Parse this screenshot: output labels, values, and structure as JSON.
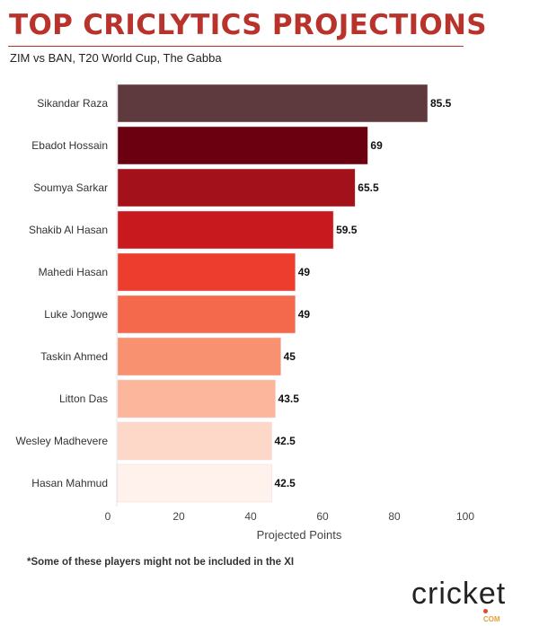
{
  "header": {
    "title": "TOP CRICLYTICS PROJECTIONS",
    "subtitle": "ZIM vs BAN, T20 World Cup, The Gabba"
  },
  "chart_data": {
    "type": "bar",
    "orientation": "horizontal",
    "categories": [
      "Sikandar Raza",
      "Ebadot Hossain",
      "Soumya Sarkar",
      "Shakib Al Hasan",
      "Mahedi Hasan",
      "Luke Jongwe",
      "Taskin Ahmed",
      "Litton Das",
      "Wesley Madhevere",
      "Hasan Mahmud"
    ],
    "values": [
      85.5,
      69,
      65.5,
      59.5,
      49,
      49,
      45,
      43.5,
      42.5,
      42.5
    ],
    "value_labels": [
      "85.5",
      "69",
      "65.5",
      "59.5",
      "49",
      "49",
      "45",
      "43.5",
      "42.5",
      "42.5"
    ],
    "colors": [
      "#5e3a3f",
      "#6a0010",
      "#a3121b",
      "#c8191f",
      "#ec3d2f",
      "#f4684c",
      "#f8916f",
      "#fbb69b",
      "#fdd8c9",
      "#fff2ec"
    ],
    "xlabel": "Projected Points",
    "ylabel": "",
    "xlim": [
      0,
      100
    ],
    "xticks": [
      0,
      20,
      40,
      60,
      80,
      100
    ],
    "xtick_labels": [
      "0",
      "20",
      "40",
      "60",
      "80",
      "100"
    ],
    "grid": false
  },
  "footnote": "*Some of these players might not be included in the XI",
  "logo": {
    "word": "cricket",
    "suffix": "COM"
  }
}
